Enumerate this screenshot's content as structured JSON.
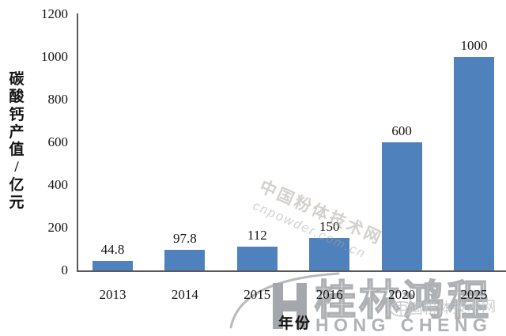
{
  "chart_data": {
    "type": "bar",
    "title": "",
    "categories": [
      "2013",
      "2014",
      "2015",
      "2016",
      "2020",
      "2025"
    ],
    "values": [
      44.8,
      97.8,
      112,
      150,
      600,
      1000
    ],
    "data_labels": [
      "44.8",
      "97.8",
      "112",
      "150",
      "600",
      "1000"
    ],
    "xlabel": "年份",
    "ylabel": "碳酸钙产值/亿元",
    "yticks": [
      "0",
      "200",
      "400",
      "600",
      "800",
      "1000",
      "1200"
    ],
    "ylim": [
      0,
      1200
    ],
    "bar_color": "#4f81bd",
    "axis_color": "#5a5a5a",
    "grid": false,
    "legend_position": "none"
  },
  "watermark": {
    "line1": "中国粉体技术网",
    "line2": "cnpowder.com.cn"
  },
  "logo": {
    "monogram": "H",
    "name_cn": "桂林鸿程",
    "name_en": "HONG CHENG",
    "stamp": "中国粉体技术网"
  }
}
